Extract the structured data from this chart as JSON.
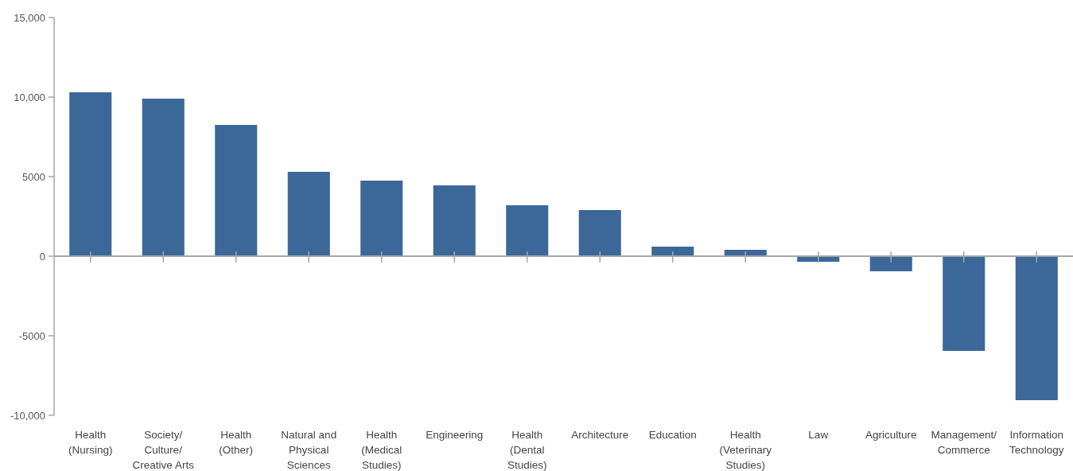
{
  "chart_data": {
    "type": "bar",
    "categories": [
      "Health (Nursing)",
      "Society/Culture/Creative Arts",
      "Health (Other)",
      "Natural and Physical Sciences",
      "Health (Medical Studies)",
      "Engineering",
      "Health (Dental Studies)",
      "Architecture",
      "Education",
      "Health (Veterinary Studies)",
      "Law",
      "Agriculture",
      "Management/Commerce",
      "Information Technology"
    ],
    "values": [
      10300,
      9900,
      8250,
      5300,
      4750,
      4450,
      3200,
      2900,
      600,
      400,
      -350,
      -950,
      -5950,
      -9050
    ],
    "color": "#3b6899",
    "ylim": [
      -10000,
      15000
    ],
    "yticks": [
      {
        "value": 15000,
        "label": "15,000"
      },
      {
        "value": 10000,
        "label": "10,000"
      },
      {
        "value": 5000,
        "label": "5000"
      },
      0,
      {
        "value": -5000,
        "label": "-5000"
      },
      {
        "value": -10000,
        "label": "-10,000"
      }
    ]
  }
}
